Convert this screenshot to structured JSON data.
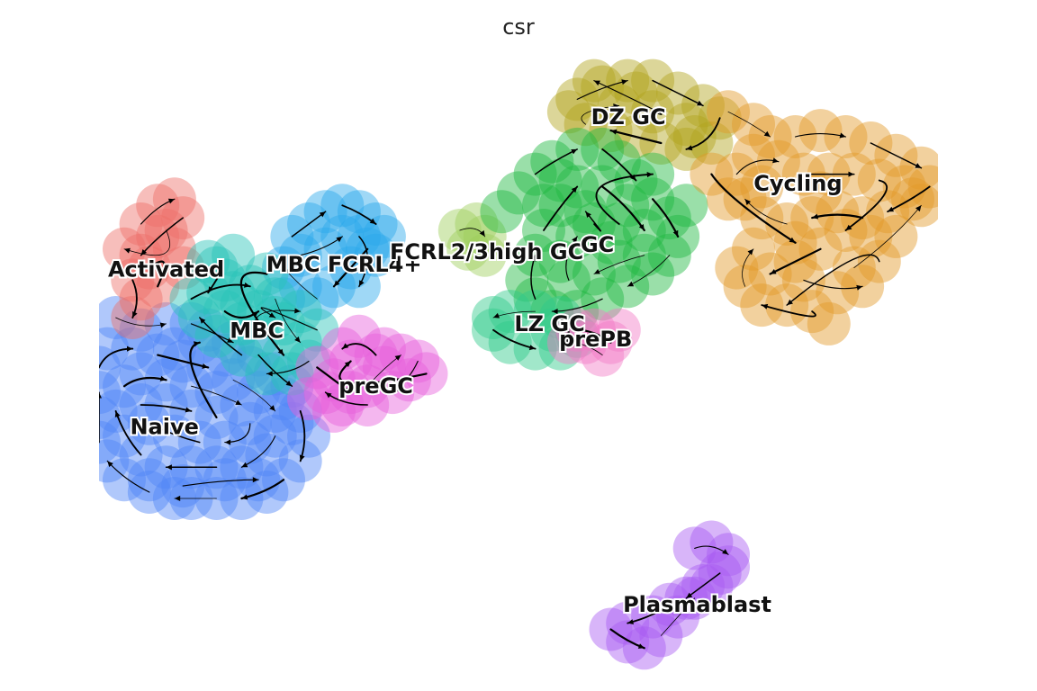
{
  "figure": {
    "title": "csr"
  },
  "chart_data": {
    "type": "scatter",
    "title": "csr",
    "xlabel": "",
    "ylabel": "",
    "axes_visible": false,
    "grid": false,
    "legend": "on data",
    "overlay": "velocity streamlines",
    "xlim": [
      0,
      100
    ],
    "ylim": [
      0,
      100
    ],
    "clusters": [
      {
        "name": "Naive",
        "color": "#4f86f7",
        "label_at": [
          7.8,
          39.5
        ],
        "points": [
          [
            2,
            57
          ],
          [
            5,
            55
          ],
          [
            8,
            56
          ],
          [
            11,
            56
          ],
          [
            13,
            55
          ],
          [
            16,
            53
          ],
          [
            19,
            51
          ],
          [
            21,
            48
          ],
          [
            23,
            46
          ],
          [
            24,
            42
          ],
          [
            25,
            38
          ],
          [
            24,
            34
          ],
          [
            22,
            31
          ],
          [
            20,
            29
          ],
          [
            17,
            28
          ],
          [
            14,
            28
          ],
          [
            11,
            28
          ],
          [
            9,
            28
          ],
          [
            6,
            29
          ],
          [
            3,
            31
          ],
          [
            1,
            34
          ],
          [
            0,
            37
          ],
          [
            0,
            41
          ],
          [
            0,
            45
          ],
          [
            0,
            49
          ],
          [
            1,
            52
          ],
          [
            4,
            52
          ],
          [
            7,
            51
          ],
          [
            10,
            50
          ],
          [
            13,
            49
          ],
          [
            16,
            47
          ],
          [
            19,
            45
          ],
          [
            21,
            42
          ],
          [
            21,
            38
          ],
          [
            20,
            35
          ],
          [
            17,
            33
          ],
          [
            14,
            33
          ],
          [
            11,
            33
          ],
          [
            8,
            33
          ],
          [
            5,
            35
          ],
          [
            3,
            38
          ],
          [
            2,
            42
          ],
          [
            3,
            46
          ],
          [
            5,
            48
          ],
          [
            8,
            47
          ],
          [
            11,
            46
          ],
          [
            14,
            45
          ],
          [
            17,
            43
          ],
          [
            18,
            40
          ],
          [
            18,
            37
          ],
          [
            15,
            37
          ],
          [
            12,
            37
          ],
          [
            9,
            38
          ],
          [
            6,
            40
          ],
          [
            5,
            43
          ],
          [
            8,
            43
          ],
          [
            11,
            42
          ],
          [
            14,
            41
          ],
          [
            9,
            52
          ],
          [
            12,
            53
          ],
          [
            15,
            51
          ],
          [
            18,
            49
          ],
          [
            6,
            31
          ],
          [
            10,
            30
          ],
          [
            15,
            31
          ],
          [
            19,
            31
          ],
          [
            23,
            40
          ],
          [
            22,
            44
          ]
        ]
      },
      {
        "name": "Activated",
        "color": "#ee6f68",
        "label_at": [
          8.0,
          64.7
        ],
        "points": [
          [
            5,
            72
          ],
          [
            7,
            75
          ],
          [
            9,
            76
          ],
          [
            10,
            73
          ],
          [
            7,
            70
          ],
          [
            5,
            67
          ],
          [
            4,
            63
          ],
          [
            5,
            60
          ],
          [
            4,
            57
          ],
          [
            7,
            62
          ],
          [
            9,
            68
          ],
          [
            6,
            65
          ],
          [
            8,
            71
          ],
          [
            10,
            65
          ],
          [
            3,
            68
          ]
        ]
      },
      {
        "name": "MBC FCRL4+",
        "color": "#2aa8ea",
        "label_at": [
          29.2,
          65.5
        ],
        "points": [
          [
            23,
            70
          ],
          [
            25,
            72
          ],
          [
            27,
            74
          ],
          [
            29,
            75
          ],
          [
            31,
            74
          ],
          [
            33,
            72
          ],
          [
            32,
            68
          ],
          [
            30,
            65
          ],
          [
            28,
            62
          ],
          [
            26,
            60
          ],
          [
            24,
            62
          ],
          [
            22,
            65
          ],
          [
            24,
            67
          ],
          [
            27,
            68
          ],
          [
            29,
            70
          ],
          [
            31,
            70
          ],
          [
            33,
            67
          ],
          [
            31,
            62
          ],
          [
            34,
            70
          ],
          [
            22,
            60
          ]
        ]
      },
      {
        "name": "MBC",
        "color": "#27c4b8",
        "label_at": [
          18.8,
          54.9
        ],
        "points": [
          [
            14,
            65
          ],
          [
            16,
            67
          ],
          [
            13,
            61
          ],
          [
            15,
            58
          ],
          [
            17,
            56
          ],
          [
            19,
            58
          ],
          [
            21,
            60
          ],
          [
            22,
            56
          ],
          [
            24,
            53
          ],
          [
            25,
            50
          ],
          [
            23,
            48
          ],
          [
            20,
            48
          ],
          [
            17,
            51
          ],
          [
            14,
            54
          ],
          [
            12,
            57
          ],
          [
            11,
            60
          ],
          [
            15,
            63
          ],
          [
            18,
            62
          ],
          [
            20,
            64
          ],
          [
            13,
            66
          ],
          [
            22,
            51
          ],
          [
            19,
            54
          ],
          [
            17,
            59
          ],
          [
            24,
            58
          ],
          [
            26,
            55
          ],
          [
            16,
            61
          ],
          [
            21,
            57
          ]
        ]
      },
      {
        "name": "preGC",
        "color": "#e65fdb",
        "label_at": [
          33.0,
          46.0
        ],
        "points": [
          [
            26,
            49
          ],
          [
            28,
            47
          ],
          [
            30,
            45
          ],
          [
            32,
            46
          ],
          [
            34,
            49
          ],
          [
            36,
            51
          ],
          [
            38,
            50
          ],
          [
            37,
            47
          ],
          [
            35,
            45
          ],
          [
            32,
            43
          ],
          [
            29,
            43
          ],
          [
            27,
            45
          ],
          [
            33,
            51
          ],
          [
            31,
            54
          ],
          [
            29,
            52
          ],
          [
            39,
            48
          ],
          [
            25,
            44
          ],
          [
            30,
            50
          ],
          [
            28,
            42
          ],
          [
            34,
            52
          ]
        ]
      },
      {
        "name": "FCRL2/3high GC",
        "color": "#9ecf5a",
        "label_at": [
          46.2,
          67.5
        ],
        "points": [
          [
            43,
            71
          ],
          [
            45,
            72
          ],
          [
            46,
            70
          ],
          [
            44,
            68
          ],
          [
            46,
            67
          ]
        ]
      },
      {
        "name": "DZ GC",
        "color": "#b1a31c",
        "label_at": [
          63.1,
          89.2
        ],
        "points": [
          [
            57,
            92
          ],
          [
            60,
            94
          ],
          [
            63,
            95
          ],
          [
            66,
            95
          ],
          [
            69,
            93
          ],
          [
            72,
            91
          ],
          [
            74,
            89
          ],
          [
            73,
            85
          ],
          [
            70,
            84
          ],
          [
            67,
            85
          ],
          [
            64,
            86
          ],
          [
            61,
            87
          ],
          [
            58,
            88
          ],
          [
            56,
            90
          ],
          [
            62,
            91
          ],
          [
            66,
            90
          ],
          [
            70,
            88
          ],
          [
            59,
            95
          ],
          [
            64,
            93
          ],
          [
            71,
            86
          ]
        ]
      },
      {
        "name": "GC",
        "color": "#20b840",
        "label_at": [
          59.4,
          68.7
        ],
        "points": [
          [
            52,
            80
          ],
          [
            54,
            82
          ],
          [
            57,
            84
          ],
          [
            60,
            84
          ],
          [
            62,
            82
          ],
          [
            64,
            79
          ],
          [
            66,
            76
          ],
          [
            68,
            73
          ],
          [
            69,
            70
          ],
          [
            68,
            67
          ],
          [
            66,
            64
          ],
          [
            63,
            62
          ],
          [
            60,
            60
          ],
          [
            57,
            58
          ],
          [
            54,
            58
          ],
          [
            52,
            60
          ],
          [
            51,
            63
          ],
          [
            52,
            67
          ],
          [
            53,
            71
          ],
          [
            55,
            75
          ],
          [
            57,
            78
          ],
          [
            60,
            78
          ],
          [
            63,
            75
          ],
          [
            65,
            71
          ],
          [
            65,
            67
          ],
          [
            62,
            66
          ],
          [
            59,
            64
          ],
          [
            56,
            63
          ],
          [
            55,
            66
          ],
          [
            57,
            70
          ],
          [
            59,
            72
          ],
          [
            61,
            69
          ],
          [
            58,
            74
          ],
          [
            62,
            72
          ],
          [
            55,
            79
          ],
          [
            66,
            80
          ],
          [
            70,
            75
          ],
          [
            48,
            74
          ],
          [
            50,
            77
          ],
          [
            53,
            75
          ]
        ]
      },
      {
        "name": "LZ GC",
        "color": "#2ec98a",
        "label_at": [
          53.7,
          56.0
        ],
        "points": [
          [
            47,
            55
          ],
          [
            49,
            53
          ],
          [
            52,
            52
          ],
          [
            55,
            52
          ],
          [
            57,
            54
          ],
          [
            55,
            57
          ],
          [
            52,
            58
          ],
          [
            49,
            58
          ],
          [
            47,
            57
          ],
          [
            54,
            55
          ]
        ]
      },
      {
        "name": "prePB",
        "color": "#f27bc6",
        "label_at": [
          59.2,
          53.5
        ],
        "points": [
          [
            57,
            55
          ],
          [
            59,
            55
          ],
          [
            61,
            53
          ],
          [
            60,
            51
          ],
          [
            58,
            53
          ],
          [
            56,
            53
          ],
          [
            62,
            55
          ]
        ]
      },
      {
        "name": "Cycling",
        "color": "#e39a28",
        "label_at": [
          83.3,
          78.5
        ],
        "points": [
          [
            75,
            90
          ],
          [
            78,
            88
          ],
          [
            80,
            86
          ],
          [
            83,
            86
          ],
          [
            86,
            87
          ],
          [
            89,
            86
          ],
          [
            92,
            85
          ],
          [
            95,
            83
          ],
          [
            98,
            81
          ],
          [
            99,
            78
          ],
          [
            97,
            76
          ],
          [
            94,
            74
          ],
          [
            91,
            73
          ],
          [
            88,
            74
          ],
          [
            85,
            73
          ],
          [
            82,
            72
          ],
          [
            79,
            73
          ],
          [
            77,
            76
          ],
          [
            76,
            80
          ],
          [
            78,
            83
          ],
          [
            81,
            82
          ],
          [
            84,
            80
          ],
          [
            87,
            80
          ],
          [
            90,
            80
          ],
          [
            93,
            79
          ],
          [
            96,
            78
          ],
          [
            89,
            71
          ],
          [
            86,
            68
          ],
          [
            83,
            66
          ],
          [
            80,
            64
          ],
          [
            77,
            62
          ],
          [
            76,
            65
          ],
          [
            78,
            68
          ],
          [
            84,
            63
          ],
          [
            88,
            61
          ],
          [
            91,
            62
          ],
          [
            93,
            66
          ],
          [
            92,
            70
          ],
          [
            82,
            59
          ],
          [
            85,
            58
          ],
          [
            87,
            56
          ],
          [
            79,
            59
          ],
          [
            73,
            80
          ],
          [
            75,
            76
          ],
          [
            83,
            69
          ],
          [
            90,
            65
          ],
          [
            95,
            70
          ],
          [
            98,
            75
          ],
          [
            79,
            78
          ],
          [
            86,
            77
          ]
        ]
      },
      {
        "name": "Plasmablast",
        "color": "#a95bf2",
        "label_at": [
          71.3,
          11.0
        ],
        "points": [
          [
            71,
            20
          ],
          [
            73,
            21
          ],
          [
            75,
            19
          ],
          [
            74,
            16
          ],
          [
            72,
            14
          ],
          [
            70,
            12
          ],
          [
            68,
            11
          ],
          [
            66,
            9
          ],
          [
            63,
            8
          ],
          [
            61,
            7
          ],
          [
            63,
            5
          ],
          [
            65,
            4
          ],
          [
            67,
            6
          ],
          [
            69,
            9
          ],
          [
            71,
            12
          ],
          [
            73,
            14
          ],
          [
            75,
            17
          ]
        ]
      }
    ]
  }
}
